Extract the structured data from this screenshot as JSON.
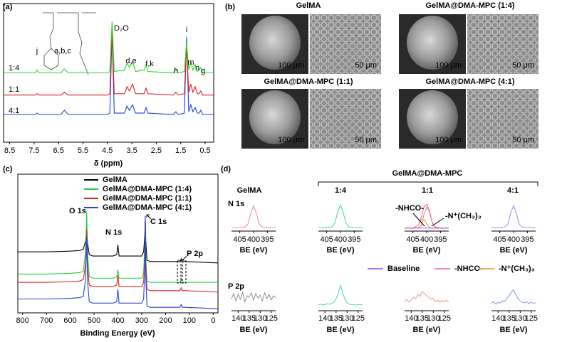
{
  "panel_labels": [
    "(a)",
    "(b)",
    "(c)",
    "(d)"
  ],
  "sem": {
    "titles": [
      "GelMA",
      "GelMA@DMA-MPC (1:4)",
      "GelMA@DMA-MPC (1:1)",
      "GelMA@DMA-MPC (4:1)"
    ],
    "scale_bars": [
      "100 μm",
      "50 μm"
    ]
  },
  "chart_data": [
    {
      "type": "line",
      "xlabel": "δ (ppm)",
      "xlim": [
        8.75,
        0.15
      ],
      "xticks": [
        8.5,
        7.5,
        6.5,
        5.5,
        4.5,
        3.5,
        2.5,
        1.5,
        0.5
      ],
      "ylim": [
        0,
        100
      ],
      "annotations": [
        "j",
        "a,b,c",
        "D₂O",
        "d,e",
        "f,k",
        "i",
        "m",
        "n",
        "h",
        "g"
      ],
      "x": [
        8.75,
        7.45,
        7.37,
        7.3,
        6.4,
        6.26,
        6.1,
        4.5,
        4.4,
        4.31,
        4.22,
        3.8,
        3.7,
        3.6,
        3.47,
        3.35,
        3.0,
        2.92,
        2.84,
        1.8,
        1.7,
        1.6,
        1.35,
        1.26,
        1.17,
        1.09,
        1.0,
        0.91,
        0.82,
        0.75,
        0.68,
        0.6,
        0.15
      ],
      "series": [
        {
          "name": "1:4",
          "color": "#22dd22",
          "values": [
            50,
            50,
            52,
            50,
            50,
            53,
            50,
            50,
            51,
            87,
            51,
            52,
            57,
            54,
            58,
            51,
            52,
            56,
            51,
            50,
            53,
            50,
            51,
            72,
            52,
            58,
            52,
            56,
            51,
            52,
            54,
            50,
            50
          ]
        },
        {
          "name": "1:1",
          "color": "#e02020",
          "values": [
            34,
            34,
            35,
            34,
            34,
            36,
            34,
            34,
            35,
            82,
            35,
            35,
            40,
            37,
            42,
            35,
            35,
            39,
            35,
            34,
            36,
            34,
            35,
            70,
            36,
            42,
            36,
            40,
            35,
            35,
            37,
            34,
            34
          ]
        },
        {
          "name": "4:1",
          "color": "#2040e0",
          "values": [
            20,
            20,
            21,
            20,
            20,
            23,
            20,
            20,
            21,
            80,
            21,
            21,
            26,
            23,
            27,
            21,
            21,
            25,
            21,
            20,
            22,
            20,
            21,
            76,
            22,
            27,
            22,
            25,
            21,
            21,
            23,
            20,
            20
          ]
        }
      ]
    },
    {
      "type": "line",
      "xlabel": "Binding Energy (eV)",
      "xlim": [
        820,
        -20
      ],
      "xticks": [
        800,
        700,
        600,
        500,
        400,
        300,
        200,
        100,
        0
      ],
      "ylim": [
        0,
        100
      ],
      "annotations": [
        "O 1s",
        "N 1s",
        "C 1s",
        "P 2p"
      ],
      "x": [
        820,
        700,
        600,
        560,
        545,
        535,
        531,
        527,
        520,
        505,
        420,
        405,
        400,
        395,
        300,
        292,
        287,
        285,
        283,
        278,
        265,
        200,
        140,
        134,
        130,
        120,
        -20
      ],
      "series": [
        {
          "name": "GelMA",
          "color": "#000000",
          "values": [
            44,
            44,
            44.5,
            45,
            46,
            52,
            60,
            50,
            42,
            41,
            41,
            42,
            49,
            41,
            41,
            44,
            56,
            68,
            52,
            38,
            37,
            37,
            37,
            39,
            37,
            37,
            36
          ]
        },
        {
          "name": "GelMA@DMA-MPC (1:4)",
          "color": "#22cc44",
          "values": [
            28,
            28,
            28.5,
            29,
            30,
            45,
            73,
            42,
            26,
            25,
            25,
            26,
            31,
            25,
            25,
            29,
            50,
            67,
            40,
            23,
            22,
            22,
            22,
            24,
            22,
            22,
            22
          ]
        },
        {
          "name": "GelMA@DMA-MPC (1:1)",
          "color": "#dd2222",
          "values": [
            22,
            22,
            22.5,
            23,
            24,
            36,
            60,
            32,
            20,
            19,
            19,
            20,
            27,
            19,
            19,
            22,
            42,
            66,
            34,
            17,
            16,
            16,
            16,
            18,
            16,
            16,
            15
          ]
        },
        {
          "name": "GelMA@DMA-MPC (4:1)",
          "color": "#2244dd",
          "values": [
            10,
            10,
            10.5,
            11,
            12,
            25,
            55,
            22,
            8,
            7,
            7,
            8,
            17,
            7,
            7,
            10,
            33,
            70,
            26,
            5,
            4,
            4,
            4,
            6,
            4,
            4,
            3
          ]
        }
      ]
    },
    {
      "type": "spectra-grid",
      "title": "GelMA@DMA-MPC",
      "columns": [
        "GelMA",
        "1:4",
        "1:1",
        "4:1"
      ],
      "rows": [
        "N 1s",
        "P 2p"
      ],
      "xlabel": "BE (eV)",
      "ylim": [
        0,
        100
      ],
      "legend": [
        {
          "name": "Baseline",
          "color": "#a040ff"
        },
        {
          "name": "-NHCO-",
          "color": "#e8609a"
        },
        {
          "name": "-N⁺(CH₃)₃",
          "color": "#f09020"
        }
      ],
      "panels": [
        [
          {
            "xlim": [
              408,
              392
            ],
            "xticks": [
              405,
              400,
              395
            ],
            "x": [
              408,
              405,
              403,
              402,
              401,
              400,
              399,
              398,
              397,
              395,
              392
            ],
            "series": [
              {
                "color": "#e87aa0",
                "values": [
                  12,
                  12,
                  14,
                  25,
                  60,
                  85,
                  60,
                  25,
                  14,
                  12,
                  12
                ]
              }
            ]
          },
          {
            "xlim": [
              408,
              392
            ],
            "xticks": [
              405,
              400,
              395
            ],
            "x": [
              408,
              405,
              403,
              402,
              401,
              400,
              399,
              398,
              397,
              395,
              392
            ],
            "series": [
              {
                "color": "#3ccc8a",
                "values": [
                  12,
                  12,
                  14,
                  28,
                  65,
                  88,
                  62,
                  26,
                  14,
                  12,
                  12
                ]
              }
            ]
          },
          {
            "xlim": [
              408,
              392
            ],
            "xticks": [
              405,
              400,
              395
            ],
            "x": [
              408,
              405,
              403,
              402,
              401,
              400,
              399,
              398,
              397,
              395,
              392
            ],
            "series": [
              {
                "color": "#f06070",
                "values": [
                  10,
                  10,
                  20,
                  45,
                  80,
                  90,
                  70,
                  30,
                  14,
                  10,
                  10
                ]
              },
              {
                "name": "-NHCO-",
                "color": "#e8609a",
                "values": [
                  10,
                  10,
                  11,
                  18,
                  55,
                  80,
                  65,
                  28,
                  13,
                  10,
                  10
                ]
              },
              {
                "name": "-N⁺(CH₃)₃",
                "color": "#f09020",
                "values": [
                  10,
                  10,
                  20,
                  38,
                  40,
                  25,
                  12,
                  10,
                  10,
                  10,
                  10
                ]
              },
              {
                "color": "#a040ff",
                "values": [
                  10,
                  10,
                  10,
                  10,
                  10,
                  10,
                  10,
                  10,
                  10,
                  10,
                  10
                ]
              }
            ]
          },
          {
            "xlim": [
              408,
              392
            ],
            "xticks": [
              405,
              400,
              395
            ],
            "x": [
              408,
              405,
              403,
              402,
              401,
              400,
              399,
              398,
              397,
              395,
              392
            ],
            "series": [
              {
                "color": "#8080ee",
                "values": [
                  12,
                  12,
                  14,
                  25,
                  62,
                  86,
                  60,
                  24,
                  14,
                  12,
                  12
                ]
              }
            ]
          }
        ],
        [
          {
            "xlim": [
              143,
              123
            ],
            "xticks": [
              140,
              135,
              130,
              125
            ],
            "x": [
              143,
              142,
              141,
              140,
              139,
              138,
              137,
              136,
              135,
              134,
              133,
              132,
              131,
              130,
              129,
              128,
              127,
              126,
              125,
              124,
              123
            ],
            "series": [
              {
                "color": "#888888",
                "values": [
                  40,
                  58,
                  32,
                  55,
                  38,
                  62,
                  30,
                  50,
                  45,
                  60,
                  35,
                  57,
                  42,
                  52,
                  33,
                  60,
                  40,
                  55,
                  36,
                  50,
                  44
                ]
              }
            ]
          },
          {
            "xlim": [
              143,
              123
            ],
            "xticks": [
              140,
              135,
              130,
              125
            ],
            "x": [
              143,
              142,
              141,
              140,
              139,
              138,
              137,
              136,
              135,
              134,
              133,
              132,
              131,
              130,
              129,
              128,
              127,
              126,
              125,
              124,
              123
            ],
            "series": [
              {
                "color": "#3dd6a0",
                "values": [
                  20,
                  22,
                  19,
                  21,
                  23,
                  22,
                  24,
                  28,
                  40,
                  60,
                  85,
                  62,
                  38,
                  26,
                  22,
                  20,
                  21,
                  19,
                  20,
                  21,
                  20
                ]
              }
            ]
          },
          {
            "xlim": [
              143,
              123
            ],
            "xticks": [
              140,
              135,
              130,
              125
            ],
            "x": [
              143,
              142,
              141,
              140,
              139,
              138,
              137,
              136,
              135,
              134,
              133,
              132,
              131,
              130,
              129,
              128,
              127,
              126,
              125,
              124,
              123
            ],
            "series": [
              {
                "color": "#f08c8c",
                "values": [
                  30,
                  38,
                  28,
                  36,
                  45,
                  40,
                  55,
                  48,
                  65,
                  58,
                  50,
                  45,
                  38,
                  42,
                  30,
                  36,
                  28,
                  34,
                  30,
                  35,
                  29
                ]
              }
            ]
          },
          {
            "xlim": [
              143,
              123
            ],
            "xticks": [
              140,
              135,
              130,
              125
            ],
            "x": [
              143,
              142,
              141,
              140,
              139,
              138,
              137,
              136,
              135,
              134,
              133,
              132,
              131,
              130,
              129,
              128,
              127,
              126,
              125,
              124,
              123
            ],
            "series": [
              {
                "color": "#7a90e8",
                "values": [
                  25,
                  30,
                  22,
                  28,
                  26,
                  34,
                  30,
                  42,
                  50,
                  62,
                  70,
                  55,
                  40,
                  32,
                  28,
                  26,
                  30,
                  24,
                  28,
                  25,
                  27
                ]
              }
            ]
          }
        ]
      ]
    }
  ]
}
